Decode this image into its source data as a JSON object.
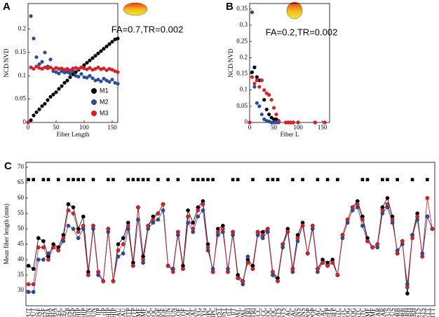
{
  "chart_data": [
    {
      "type": "scatter",
      "label": "A",
      "annotation": "FA=0.7,TR=0.002",
      "xlabel": "Fiber Length",
      "ylabel": "NCD/NVD",
      "x": [
        0,
        5,
        10,
        15,
        20,
        25,
        30,
        35,
        40,
        45,
        50,
        55,
        60,
        65,
        70,
        75,
        80,
        85,
        90,
        95,
        100,
        105,
        110,
        115,
        120,
        125,
        130,
        135,
        140,
        145,
        150,
        155,
        160
      ],
      "series": [
        {
          "name": "M1",
          "color": "#000000",
          "values": [
            0,
            0.005,
            0.015,
            0.022,
            0.028,
            0.035,
            0.04,
            0.048,
            0.055,
            0.06,
            0.065,
            0.072,
            0.078,
            0.085,
            0.09,
            0.097,
            0.103,
            0.108,
            0.113,
            0.118,
            0.123,
            0.128,
            0.133,
            0.138,
            0.143,
            0.148,
            0.153,
            0.158,
            0.163,
            0.168,
            0.173,
            0.178,
            0.18
          ]
        },
        {
          "name": "M2",
          "color": "#2b4c9b",
          "values": [
            0,
            0.228,
            0.18,
            0.14,
            0.125,
            0.13,
            0.15,
            0.12,
            0.135,
            0.11,
            0.108,
            0.105,
            0.11,
            0.107,
            0.108,
            0.105,
            0.11,
            0.1,
            0.098,
            0.104,
            0.097,
            0.096,
            0.1,
            0.095,
            0.09,
            0.092,
            0.088,
            0.094,
            0.09,
            0.087,
            0.092,
            0.085,
            0.083
          ]
        },
        {
          "name": "M3",
          "color": "#d8202a",
          "values": [
            0,
            0.118,
            0.115,
            0.12,
            0.117,
            0.115,
            0.118,
            0.116,
            0.118,
            0.114,
            0.117,
            0.115,
            0.116,
            0.113,
            0.115,
            0.112,
            0.116,
            0.117,
            0.115,
            0.118,
            0.116,
            0.114,
            0.117,
            0.113,
            0.115,
            0.118,
            0.114,
            0.116,
            0.112,
            0.115,
            0.113,
            0.11,
            0.108
          ]
        }
      ],
      "xlim": [
        0,
        160
      ],
      "xticks": [
        0,
        50,
        100,
        150
      ],
      "ylim": [
        0,
        0.255
      ],
      "yticks": [
        0,
        0.05,
        0.1,
        0.15,
        0.2
      ],
      "legend": "lower right"
    },
    {
      "type": "scatter",
      "label": "B",
      "annotation": "FA=0.2,TR=0.002",
      "xlabel": "Fiber L",
      "ylabel": "NCD/NVD",
      "x": [
        0,
        5,
        10,
        15,
        20,
        25,
        30,
        35,
        40,
        45,
        50,
        55,
        60,
        75,
        80,
        85,
        90,
        100,
        135,
        155
      ],
      "series": [
        {
          "color": "#000000",
          "values": [
            0,
            0.155,
            0.17,
            0.14,
            0.13,
            0.13,
            0.07,
            0.04,
            0.025,
            0.015,
            0.01,
            0.01,
            0.005,
            0,
            0,
            0,
            0,
            0,
            0,
            0
          ]
        },
        {
          "color": "#2b4c9b",
          "values": [
            0,
            0.34,
            0.11,
            0.06,
            0.05,
            0.025,
            0.01,
            0.005,
            0.003,
            0,
            0,
            0,
            0,
            0,
            0,
            0,
            0,
            0,
            0,
            0
          ]
        },
        {
          "color": "#d8202a",
          "values": [
            0,
            0.14,
            0.12,
            0.13,
            0.11,
            0.13,
            0.1,
            0.09,
            0.085,
            0.07,
            0.045,
            0.025,
            0.005,
            0,
            0,
            0,
            0,
            0,
            0,
            0
          ]
        }
      ],
      "xlim": [
        0,
        165
      ],
      "xticks": [
        0,
        50,
        100,
        150
      ],
      "ylim": [
        0,
        0.367
      ],
      "yticks": [
        0,
        0.05,
        0.1,
        0.15,
        0.2,
        0.25,
        0.3,
        0.35
      ]
    },
    {
      "type": "line",
      "label": "C",
      "ylabel": "Mean fiber length (mm)",
      "categories": [
        "rPUT",
        "lPUT",
        "lSF",
        "rSF",
        "rTHA",
        "lTHA",
        "lPREC",
        "rPREC",
        "rSP",
        "lSP",
        "rHIP",
        "lHIP",
        "rPCUN",
        "lPCUN",
        "lIP",
        "rIP",
        "lPHIP",
        "rPHIP",
        "lCAU",
        "rCAU",
        "lTP",
        "rTP",
        "rMF",
        "lMF",
        "rPOC",
        "lPOC",
        "rMOF",
        "lMOF",
        "rCUN",
        "lCUN",
        "rLOF",
        "lLOF",
        "rPCAL",
        "lPCAL",
        "rAMYG",
        "lAMYG",
        "rPC",
        "lPC",
        "rST",
        "lST",
        "rIT",
        "lIT",
        "rPAL",
        "lPAL",
        "rPTRI",
        "lPTRI",
        "rACC",
        "lACC",
        "rLOC",
        "lLOC",
        "rPSTS",
        "lPSTS",
        "rBAC",
        "lBAC",
        "rINS",
        "lINS",
        "rPOP",
        "lPOP",
        "rCAC",
        "lCAC",
        "rFP",
        "lFP",
        "rISTC",
        "lISTC",
        "rLOG",
        "lLOG",
        "rPSTC",
        "lPSTC",
        "rCMF",
        "lCMF",
        "rSMAR",
        "lSMAR",
        "rFUS",
        "lFUS",
        "rPORB",
        "lPORB",
        "rPARH",
        "lPARH",
        "rBSTS",
        "lBSTS",
        "rTT",
        "lTT"
      ],
      "series": [
        {
          "color": "#000000",
          "values": [
            38,
            37,
            47,
            46,
            41,
            45,
            44,
            48,
            58,
            57,
            50,
            54,
            36,
            51,
            36,
            33,
            50,
            33,
            45,
            47,
            52,
            39,
            57,
            41,
            51,
            54,
            55,
            58,
            38,
            37,
            49,
            38,
            56,
            52,
            57,
            59,
            45,
            36,
            50,
            51,
            36,
            49,
            35,
            33,
            40,
            38,
            49,
            49,
            50,
            36,
            34,
            45,
            50,
            37,
            48,
            52,
            42,
            51,
            37,
            40,
            39,
            40,
            35,
            48,
            53,
            57,
            59,
            54,
            47,
            44,
            45,
            57,
            60,
            54,
            42,
            46,
            29,
            48,
            55,
            41,
            54,
            50
          ]
        },
        {
          "color": "#2b4c9b",
          "values": [
            29.5,
            29.5,
            40,
            40,
            42,
            44,
            43,
            46,
            51,
            50,
            47,
            50,
            35,
            50,
            35,
            33,
            49,
            33,
            41,
            42,
            50,
            38,
            53,
            39,
            50,
            52,
            53,
            56,
            38,
            37,
            48,
            37,
            52,
            49,
            54,
            56,
            43,
            37,
            48,
            49,
            37,
            48,
            34,
            32,
            41,
            37,
            48,
            47,
            49,
            35,
            33,
            44,
            49,
            36,
            46,
            51,
            42,
            50,
            36,
            39,
            38,
            39,
            35,
            47,
            52,
            56,
            57,
            51,
            46,
            44,
            44,
            55,
            57,
            52,
            43,
            45,
            32,
            48,
            53,
            42,
            54,
            50
          ]
        },
        {
          "color": "#d8202a",
          "values": [
            32,
            32,
            44,
            44,
            40,
            44,
            43,
            47,
            56,
            55,
            49,
            51,
            35,
            51,
            36,
            33,
            50,
            33,
            43,
            45,
            51,
            38,
            57,
            40,
            51,
            53,
            55,
            58,
            38,
            36,
            49,
            37,
            54,
            50,
            56,
            58,
            44,
            36,
            49,
            50,
            36,
            49,
            34,
            33,
            39,
            37,
            49,
            48,
            50,
            36,
            33,
            45,
            49,
            37,
            47,
            51,
            42,
            51,
            37,
            39,
            38,
            39,
            35,
            48,
            53,
            57,
            58,
            53,
            46,
            44,
            45,
            56,
            58,
            53,
            42,
            46,
            31,
            47,
            54,
            41,
            60,
            50
          ]
        }
      ],
      "markers": [
        66,
        66,
        null,
        66,
        66,
        null,
        66,
        null,
        66,
        66,
        66,
        66,
        null,
        66,
        null,
        null,
        66,
        66,
        null,
        null,
        66,
        66,
        66,
        66,
        66,
        null,
        66,
        null,
        66,
        null,
        66,
        null,
        null,
        66,
        66,
        66,
        66,
        66,
        null,
        null,
        null,
        66,
        66,
        null,
        null,
        66,
        null,
        null,
        66,
        66,
        66,
        null,
        null,
        66,
        null,
        66,
        null,
        null,
        66,
        null,
        66,
        null,
        66,
        null,
        null,
        null,
        null,
        66,
        66,
        null,
        null,
        66,
        66,
        null,
        66,
        null,
        null,
        66,
        null,
        null,
        66,
        null
      ],
      "ylim": [
        25,
        71.6
      ],
      "yticks": [
        30,
        35,
        40,
        45,
        50,
        55,
        60,
        65,
        70
      ]
    }
  ]
}
